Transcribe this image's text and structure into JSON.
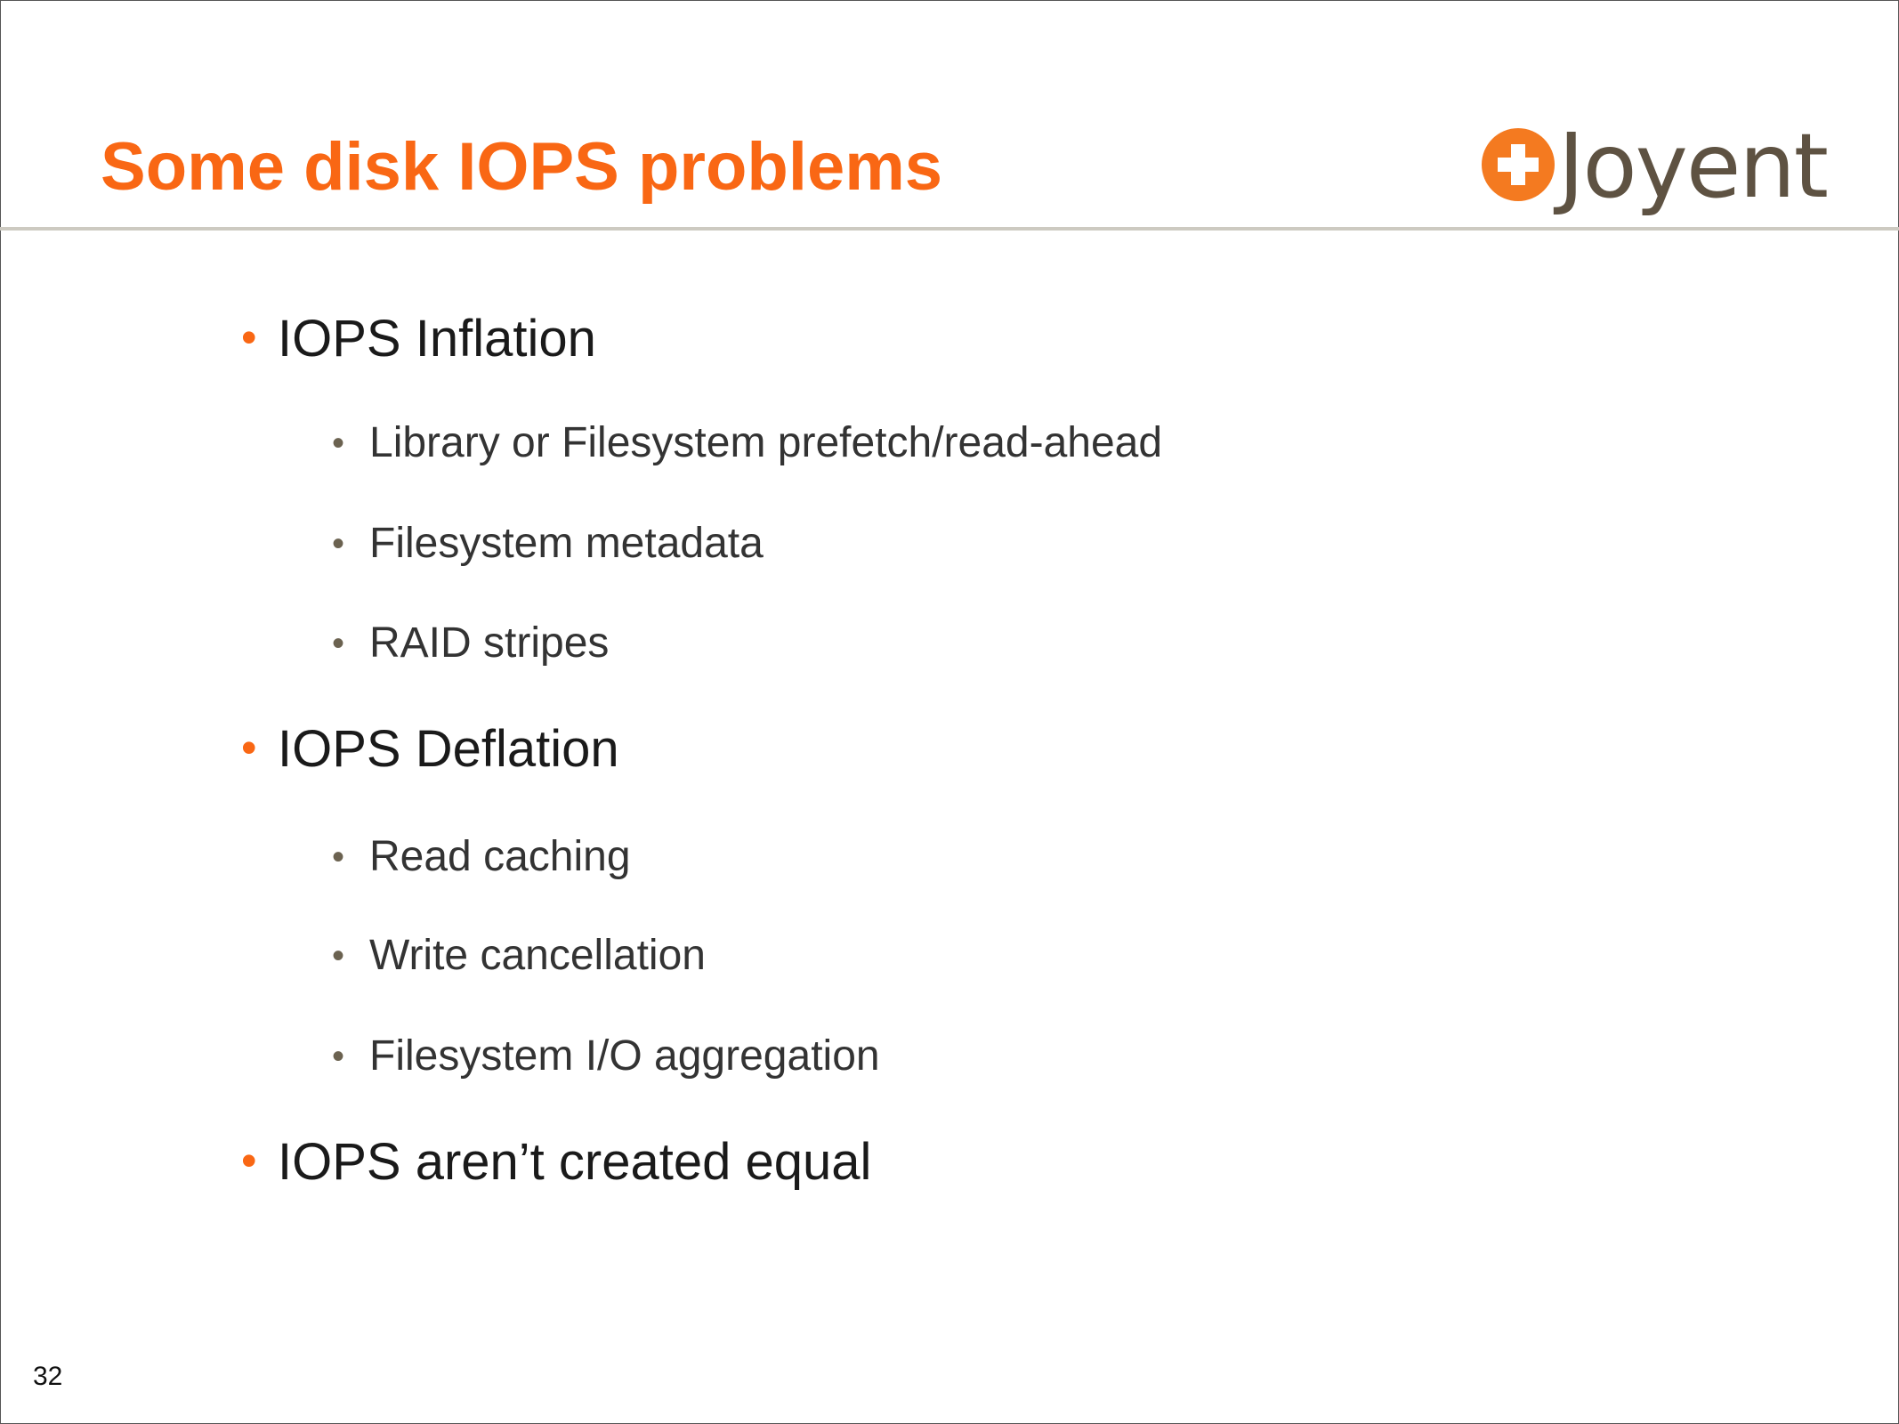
{
  "slide": {
    "title": "Some disk IOPS problems",
    "logo_text": "Joyent",
    "page_number": "32",
    "accent_color": "#f96714",
    "bullets": [
      {
        "text": "IOPS Inflation",
        "sub": [
          "Library or Filesystem prefetch/read-ahead",
          "Filesystem metadata",
          "RAID stripes"
        ]
      },
      {
        "text": "IOPS Deflation",
        "sub": [
          "Read caching",
          "Write cancellation",
          "Filesystem I/O aggregation"
        ]
      },
      {
        "text": "IOPS aren’t created equal",
        "sub": []
      }
    ]
  }
}
